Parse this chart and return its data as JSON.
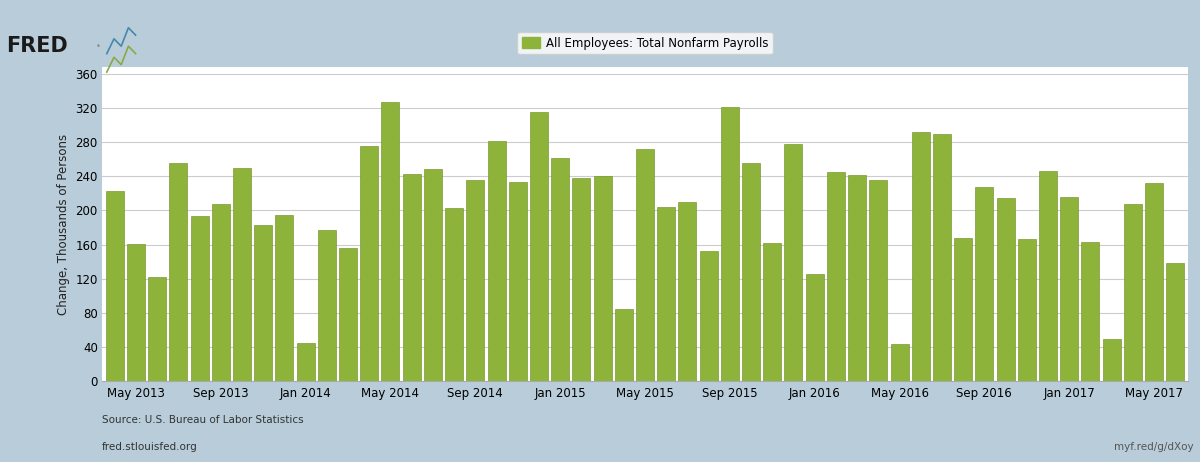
{
  "title": "All Employees: Total Nonfarm Payrolls",
  "ylabel": "Change, Thousands of Persons",
  "bar_color": "#8db33a",
  "bar_edge_color": "#6b8a1a",
  "background_outer": "#b8cdd9",
  "background_inner": "#ffffff",
  "ylim": [
    0,
    368
  ],
  "yticks": [
    0,
    40,
    80,
    120,
    160,
    200,
    240,
    280,
    320,
    360
  ],
  "source_text": "Source: U.S. Bureau of Labor Statistics",
  "url_left": "fred.stlouisfed.org",
  "url_right": "myf.red/g/dXoy",
  "xtick_labels": [
    "May 2013",
    "Sep 2013",
    "Jan 2014",
    "May 2014",
    "Sep 2014",
    "Jan 2015",
    "May 2015",
    "Sep 2015",
    "Jan 2016",
    "May 2016",
    "Sep 2016",
    "Jan 2017",
    "May 2017"
  ],
  "xtick_positions": [
    1,
    5,
    9,
    13,
    17,
    21,
    25,
    29,
    33,
    37,
    41,
    45,
    49
  ],
  "values": [
    223,
    161,
    122,
    255,
    193,
    208,
    250,
    183,
    195,
    45,
    177,
    156,
    276,
    327,
    243,
    248,
    203,
    236,
    281,
    233,
    315,
    261,
    238,
    240,
    85,
    272,
    204,
    210,
    153,
    321,
    255,
    162,
    278,
    125,
    245,
    242,
    236,
    44,
    292,
    289,
    168,
    228,
    214,
    166,
    246,
    216,
    163,
    49,
    207,
    232,
    138
  ]
}
